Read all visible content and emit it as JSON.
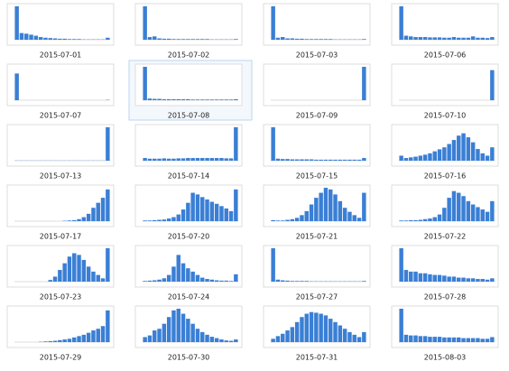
{
  "chart_data": [
    {
      "type": "bar",
      "title": "2015-07-01",
      "color": "#3a7fd5",
      "ylim": [
        0,
        100
      ],
      "values": [
        100,
        20,
        18,
        15,
        12,
        8,
        6,
        5,
        4,
        3,
        3,
        2,
        2,
        2,
        1,
        1,
        1,
        1,
        1,
        6
      ]
    },
    {
      "type": "bar",
      "title": "2015-07-02",
      "color": "#3a7fd5",
      "ylim": [
        0,
        100
      ],
      "values": [
        100,
        8,
        10,
        4,
        3,
        3,
        2,
        2,
        2,
        2,
        2,
        2,
        2,
        2,
        1,
        1,
        1,
        1,
        1,
        2
      ]
    },
    {
      "type": "bar",
      "title": "2015-07-03",
      "color": "#3a7fd5",
      "ylim": [
        0,
        100
      ],
      "values": [
        100,
        6,
        8,
        4,
        4,
        3,
        3,
        2,
        2,
        2,
        2,
        2,
        2,
        1,
        1,
        1,
        1,
        1,
        1,
        2
      ]
    },
    {
      "type": "bar",
      "title": "2015-07-06",
      "color": "#3a7fd5",
      "ylim": [
        0,
        100
      ],
      "values": [
        100,
        12,
        10,
        8,
        8,
        8,
        7,
        7,
        7,
        6,
        6,
        8,
        6,
        6,
        6,
        10,
        6,
        6,
        5,
        8
      ]
    },
    {
      "type": "bar",
      "title": "2015-07-07",
      "color": "#3a7fd5",
      "ylim": [
        0,
        100
      ],
      "values": [
        80,
        0,
        0,
        0,
        0,
        0,
        0,
        0,
        0,
        0,
        0,
        0,
        0,
        0,
        0,
        0,
        0,
        0,
        0,
        1
      ]
    },
    {
      "type": "bar",
      "title": "2015-07-08",
      "color": "#3a7fd5",
      "ylim": [
        0,
        100
      ],
      "values": [
        100,
        5,
        4,
        4,
        3,
        3,
        3,
        3,
        3,
        3,
        2,
        2,
        2,
        2,
        2,
        2,
        2,
        2,
        2,
        3
      ]
    },
    {
      "type": "bar",
      "title": "2015-07-09",
      "color": "#3a7fd5",
      "ylim": [
        0,
        100
      ],
      "values": [
        0,
        0,
        0,
        0,
        0,
        0,
        0,
        0,
        0,
        0,
        0,
        0,
        0,
        0,
        0,
        0,
        0,
        0,
        0,
        100
      ]
    },
    {
      "type": "bar",
      "title": "2015-07-10",
      "color": "#3a7fd5",
      "ylim": [
        0,
        100
      ],
      "values": [
        0,
        0,
        0,
        0,
        0,
        0,
        0,
        0,
        0,
        0,
        0,
        0,
        0,
        0,
        0,
        0,
        0,
        0,
        0,
        90
      ]
    },
    {
      "type": "bar",
      "title": "2015-07-13",
      "color": "#3a7fd5",
      "ylim": [
        0,
        100
      ],
      "values": [
        0.5,
        0.5,
        0.5,
        0.5,
        0.5,
        0.5,
        0.5,
        0.5,
        0.5,
        0.5,
        0.5,
        0.5,
        0.5,
        0.5,
        0.5,
        0.5,
        0.5,
        0.5,
        0.5,
        100
      ]
    },
    {
      "type": "bar",
      "title": "2015-07-14",
      "color": "#3a7fd5",
      "ylim": [
        0,
        100
      ],
      "values": [
        8,
        6,
        6,
        6,
        7,
        6,
        6,
        7,
        7,
        8,
        8,
        8,
        8,
        8,
        8,
        8,
        8,
        7,
        7,
        100
      ]
    },
    {
      "type": "bar",
      "title": "2015-07-15",
      "color": "#3a7fd5",
      "ylim": [
        0,
        100
      ],
      "values": [
        100,
        6,
        5,
        5,
        4,
        4,
        4,
        4,
        4,
        3,
        3,
        3,
        3,
        3,
        3,
        3,
        3,
        3,
        3,
        8
      ]
    },
    {
      "type": "bar",
      "title": "2015-07-16",
      "color": "#3a7fd5",
      "ylim": [
        0,
        100
      ],
      "values": [
        15,
        8,
        10,
        12,
        15,
        18,
        22,
        28,
        34,
        40,
        50,
        62,
        75,
        82,
        70,
        55,
        35,
        22,
        15,
        40
      ]
    },
    {
      "type": "bar",
      "title": "2015-07-17",
      "color": "#3a7fd5",
      "ylim": [
        0,
        100
      ],
      "values": [
        0,
        0,
        0,
        0,
        0,
        0,
        0,
        0,
        0,
        0,
        1,
        2,
        3,
        6,
        12,
        22,
        40,
        55,
        70,
        95
      ]
    },
    {
      "type": "bar",
      "title": "2015-07-20",
      "color": "#3a7fd5",
      "ylim": [
        0,
        100
      ],
      "values": [
        2,
        2,
        3,
        4,
        5,
        8,
        12,
        20,
        35,
        55,
        85,
        80,
        72,
        65,
        58,
        52,
        45,
        38,
        30,
        95
      ]
    },
    {
      "type": "bar",
      "title": "2015-07-21",
      "color": "#3a7fd5",
      "ylim": [
        0,
        100
      ],
      "values": [
        3,
        2,
        2,
        4,
        6,
        10,
        18,
        30,
        50,
        70,
        85,
        100,
        95,
        80,
        60,
        40,
        28,
        18,
        10,
        85
      ]
    },
    {
      "type": "bar",
      "title": "2015-07-22",
      "color": "#3a7fd5",
      "ylim": [
        0,
        100
      ],
      "values": [
        2,
        2,
        3,
        3,
        4,
        6,
        8,
        12,
        20,
        40,
        70,
        90,
        85,
        75,
        60,
        50,
        42,
        35,
        28,
        60
      ]
    },
    {
      "type": "bar",
      "title": "2015-07-23",
      "color": "#3a7fd5",
      "ylim": [
        0,
        100
      ],
      "values": [
        0,
        0,
        0,
        0,
        0,
        0,
        0,
        5,
        15,
        35,
        55,
        75,
        85,
        80,
        65,
        45,
        30,
        20,
        10,
        100
      ]
    },
    {
      "type": "bar",
      "title": "2015-07-24",
      "color": "#3a7fd5",
      "ylim": [
        0,
        100
      ],
      "values": [
        2,
        3,
        4,
        6,
        10,
        20,
        45,
        80,
        55,
        40,
        30,
        20,
        12,
        8,
        6,
        4,
        3,
        3,
        2,
        22
      ]
    },
    {
      "type": "bar",
      "title": "2015-07-27",
      "color": "#3a7fd5",
      "ylim": [
        0,
        100
      ],
      "values": [
        100,
        6,
        4,
        3,
        2,
        2,
        2,
        2,
        1,
        1,
        1,
        1,
        1,
        1,
        1,
        1,
        1,
        1,
        1,
        2
      ]
    },
    {
      "type": "bar",
      "title": "2015-07-28",
      "color": "#3a7fd5",
      "ylim": [
        0,
        100
      ],
      "values": [
        100,
        35,
        30,
        30,
        25,
        25,
        22,
        20,
        20,
        18,
        15,
        15,
        12,
        12,
        10,
        10,
        8,
        8,
        6,
        10
      ]
    },
    {
      "type": "bar",
      "title": "2015-07-29",
      "color": "#3a7fd5",
      "ylim": [
        0,
        100
      ],
      "values": [
        0,
        0,
        0,
        0,
        0,
        1,
        2,
        3,
        4,
        6,
        8,
        10,
        14,
        18,
        22,
        28,
        35,
        40,
        48,
        95
      ]
    },
    {
      "type": "bar",
      "title": "2015-07-30",
      "color": "#3a7fd5",
      "ylim": [
        0,
        100
      ],
      "values": [
        15,
        20,
        35,
        40,
        55,
        75,
        95,
        100,
        85,
        70,
        55,
        40,
        30,
        22,
        16,
        12,
        8,
        5,
        4,
        8
      ]
    },
    {
      "type": "bar",
      "title": "2015-07-31",
      "color": "#3a7fd5",
      "ylim": [
        0,
        100
      ],
      "values": [
        10,
        18,
        25,
        35,
        45,
        60,
        75,
        85,
        90,
        88,
        85,
        80,
        70,
        60,
        50,
        40,
        30,
        22,
        15,
        30
      ]
    },
    {
      "type": "bar",
      "title": "2015-08-03",
      "color": "#3a7fd5",
      "ylim": [
        0,
        100
      ],
      "values": [
        100,
        22,
        20,
        20,
        18,
        18,
        16,
        16,
        16,
        14,
        14,
        14,
        14,
        12,
        12,
        12,
        12,
        10,
        10,
        15
      ]
    }
  ]
}
